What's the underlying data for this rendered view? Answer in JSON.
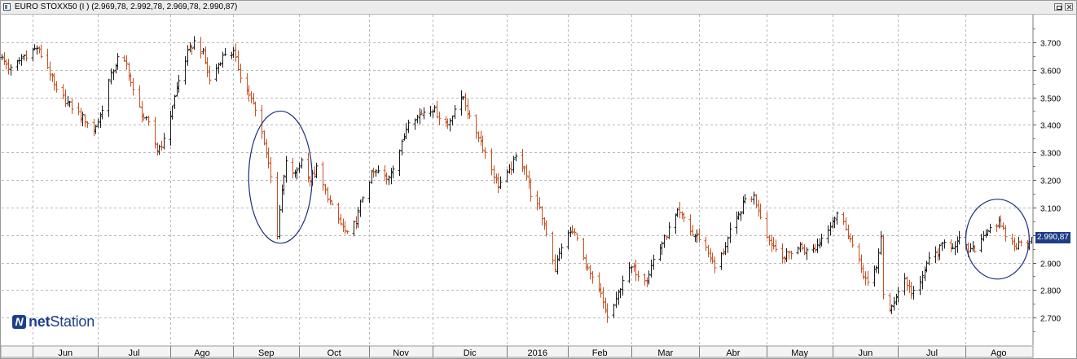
{
  "window": {
    "title": "EURO STOXX50 (I ) (2.969,78, 2.992,78, 2.969,78, 2.990,87)"
  },
  "logo": {
    "prefix": "net",
    "suffix": "Station"
  },
  "colors": {
    "up": "#1a1a1a",
    "down": "#c8501e",
    "grid": "#b8b8b8",
    "annotation": "#1a2f7a",
    "tag": "#1f3c86"
  },
  "last_price_label": "2.990,87",
  "chart_data": {
    "type": "ohlc",
    "title": "EURO STOXX50 (I )",
    "last": {
      "open": 2969.78,
      "high": 2992.78,
      "low": 2969.78,
      "close": 2990.87
    },
    "ylim": [
      2600,
      3800
    ],
    "y_ticks": [
      2700,
      2800,
      2900,
      3000,
      3100,
      3200,
      3300,
      3400,
      3500,
      3600,
      3700
    ],
    "y_tick_labels": [
      "2.700",
      "2.800",
      "2.900",
      "3.000",
      "3.100",
      "3.200",
      "3.300",
      "3.400",
      "3.500",
      "3.600",
      "3.700"
    ],
    "x_start": "2015-05-18",
    "x_end": "2016-08-31",
    "x_ticks": [
      {
        "label": "Jun",
        "date": "2015-06-01"
      },
      {
        "label": "Jul",
        "date": "2015-07-01"
      },
      {
        "label": "Ago",
        "date": "2015-08-03"
      },
      {
        "label": "Sep",
        "date": "2015-09-01"
      },
      {
        "label": "Oct",
        "date": "2015-10-01"
      },
      {
        "label": "Nov",
        "date": "2015-11-02"
      },
      {
        "label": "Dic",
        "date": "2015-12-01"
      },
      {
        "label": "2016",
        "date": "2016-01-04"
      },
      {
        "label": "Feb",
        "date": "2016-02-01"
      },
      {
        "label": "Mar",
        "date": "2016-03-01"
      },
      {
        "label": "Abr",
        "date": "2016-04-01"
      },
      {
        "label": "May",
        "date": "2016-05-02"
      },
      {
        "label": "Jun",
        "date": "2016-06-01"
      },
      {
        "label": "Jul",
        "date": "2016-07-01"
      },
      {
        "label": "Ago",
        "date": "2016-08-01"
      }
    ],
    "close_path": [
      [
        "2015-05-18",
        3640
      ],
      [
        "2015-05-22",
        3600
      ],
      [
        "2015-05-28",
        3650
      ],
      [
        "2015-06-03",
        3680
      ],
      [
        "2015-06-08",
        3610
      ],
      [
        "2015-06-12",
        3520
      ],
      [
        "2015-06-17",
        3480
      ],
      [
        "2015-06-22",
        3440
      ],
      [
        "2015-06-25",
        3420
      ],
      [
        "2015-06-29",
        3380
      ],
      [
        "2015-07-02",
        3430
      ],
      [
        "2015-07-06",
        3560
      ],
      [
        "2015-07-10",
        3640
      ],
      [
        "2015-07-14",
        3620
      ],
      [
        "2015-07-17",
        3520
      ],
      [
        "2015-07-21",
        3440
      ],
      [
        "2015-07-24",
        3400
      ],
      [
        "2015-07-28",
        3310
      ],
      [
        "2015-07-31",
        3340
      ],
      [
        "2015-08-04",
        3470
      ],
      [
        "2015-08-07",
        3560
      ],
      [
        "2015-08-11",
        3660
      ],
      [
        "2015-08-14",
        3700
      ],
      [
        "2015-08-18",
        3660
      ],
      [
        "2015-08-21",
        3560
      ],
      [
        "2015-08-25",
        3620
      ],
      [
        "2015-08-28",
        3660
      ],
      [
        "2015-09-01",
        3660
      ],
      [
        "2015-09-04",
        3580
      ],
      [
        "2015-09-08",
        3510
      ],
      [
        "2015-09-11",
        3450
      ],
      [
        "2015-09-15",
        3340
      ],
      [
        "2015-09-18",
        3220
      ],
      [
        "2015-09-21",
        3000
      ],
      [
        "2015-09-23",
        3160
      ],
      [
        "2015-09-25",
        3260
      ],
      [
        "2015-09-29",
        3220
      ],
      [
        "2015-10-02",
        3270
      ],
      [
        "2015-10-06",
        3200
      ],
      [
        "2015-10-09",
        3240
      ],
      [
        "2015-10-13",
        3160
      ],
      [
        "2015-10-16",
        3100
      ],
      [
        "2015-10-20",
        3040
      ],
      [
        "2015-10-23",
        3000
      ],
      [
        "2015-10-27",
        3050
      ],
      [
        "2015-10-30",
        3140
      ],
      [
        "2015-11-03",
        3220
      ],
      [
        "2015-11-06",
        3230
      ],
      [
        "2015-11-10",
        3200
      ],
      [
        "2015-11-13",
        3250
      ],
      [
        "2015-11-17",
        3330
      ],
      [
        "2015-11-20",
        3420
      ],
      [
        "2015-11-24",
        3430
      ],
      [
        "2015-11-27",
        3450
      ],
      [
        "2015-12-01",
        3460
      ],
      [
        "2015-12-04",
        3430
      ],
      [
        "2015-12-08",
        3400
      ],
      [
        "2015-12-11",
        3460
      ],
      [
        "2015-12-15",
        3500
      ],
      [
        "2015-12-18",
        3420
      ],
      [
        "2015-12-22",
        3360
      ],
      [
        "2015-12-28",
        3240
      ],
      [
        "2015-12-31",
        3180
      ],
      [
        "2016-01-05",
        3230
      ],
      [
        "2016-01-08",
        3280
      ],
      [
        "2016-01-12",
        3250
      ],
      [
        "2016-01-15",
        3150
      ],
      [
        "2016-01-19",
        3090
      ],
      [
        "2016-01-22",
        3010
      ],
      [
        "2016-01-26",
        2880
      ],
      [
        "2016-01-29",
        2960
      ],
      [
        "2016-02-02",
        3010
      ],
      [
        "2016-02-05",
        3000
      ],
      [
        "2016-02-09",
        2880
      ],
      [
        "2016-02-12",
        2840
      ],
      [
        "2016-02-16",
        2780
      ],
      [
        "2016-02-19",
        2700
      ],
      [
        "2016-02-23",
        2760
      ],
      [
        "2016-02-26",
        2840
      ],
      [
        "2016-03-01",
        2880
      ],
      [
        "2016-03-04",
        2860
      ],
      [
        "2016-03-08",
        2840
      ],
      [
        "2016-03-11",
        2910
      ],
      [
        "2016-03-15",
        2970
      ],
      [
        "2016-03-18",
        3020
      ],
      [
        "2016-03-22",
        3080
      ],
      [
        "2016-03-25",
        3060
      ],
      [
        "2016-03-29",
        3000
      ],
      [
        "2016-04-01",
        2990
      ],
      [
        "2016-04-05",
        2940
      ],
      [
        "2016-04-08",
        2880
      ],
      [
        "2016-04-12",
        2940
      ],
      [
        "2016-04-15",
        3010
      ],
      [
        "2016-04-19",
        3070
      ],
      [
        "2016-04-22",
        3130
      ],
      [
        "2016-04-26",
        3140
      ],
      [
        "2016-04-29",
        3070
      ],
      [
        "2016-05-03",
        2980
      ],
      [
        "2016-05-06",
        2950
      ],
      [
        "2016-05-10",
        2920
      ],
      [
        "2016-05-13",
        2940
      ],
      [
        "2016-05-17",
        2960
      ],
      [
        "2016-05-20",
        2940
      ],
      [
        "2016-05-24",
        2950
      ],
      [
        "2016-05-27",
        2990
      ],
      [
        "2016-05-31",
        3040
      ],
      [
        "2016-06-03",
        3080
      ],
      [
        "2016-06-07",
        3030
      ],
      [
        "2016-06-10",
        2960
      ],
      [
        "2016-06-14",
        2880
      ],
      [
        "2016-06-17",
        2820
      ],
      [
        "2016-06-21",
        2880
      ],
      [
        "2016-06-23",
        3000
      ],
      [
        "2016-06-24",
        2780
      ],
      [
        "2016-06-27",
        2720
      ],
      [
        "2016-06-30",
        2780
      ],
      [
        "2016-07-04",
        2840
      ],
      [
        "2016-07-07",
        2790
      ],
      [
        "2016-07-11",
        2820
      ],
      [
        "2016-07-14",
        2900
      ],
      [
        "2016-07-19",
        2940
      ],
      [
        "2016-07-22",
        2970
      ],
      [
        "2016-07-26",
        2960
      ],
      [
        "2016-07-29",
        2980
      ],
      [
        "2016-08-02",
        2940
      ],
      [
        "2016-08-05",
        2950
      ],
      [
        "2016-08-09",
        3000
      ],
      [
        "2016-08-12",
        3030
      ],
      [
        "2016-08-16",
        3040
      ],
      [
        "2016-08-19",
        3000
      ],
      [
        "2016-08-23",
        2960
      ],
      [
        "2016-08-26",
        2970
      ],
      [
        "2016-08-31",
        2990
      ]
    ],
    "annotations": [
      {
        "type": "ellipse",
        "from_date": "2015-09-08",
        "to_date": "2015-10-07",
        "y_top": 3450,
        "y_bottom": 2970
      },
      {
        "type": "ellipse",
        "from_date": "2016-08-01",
        "to_date": "2016-08-30",
        "y_top": 3130,
        "y_bottom": 2840
      }
    ],
    "grid": true,
    "legend": "none"
  }
}
